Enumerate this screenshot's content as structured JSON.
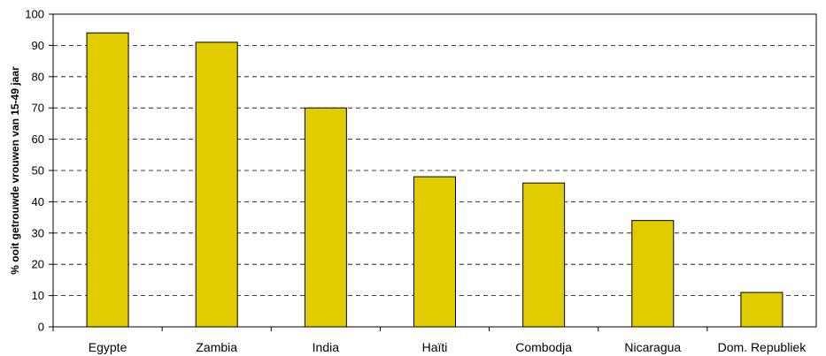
{
  "chart_data": {
    "type": "bar",
    "title": "",
    "xlabel": "",
    "ylabel": "% ooit getrouwde vrouwen van 15-49 jaar",
    "categories": [
      "Egypte",
      "Zambia",
      "India",
      "Haïti",
      "Combodja",
      "Nicaragua",
      "Dom. Republiek"
    ],
    "values": [
      94,
      91,
      70,
      48,
      46,
      34,
      11
    ],
    "ylim": [
      0,
      100
    ],
    "yticks": [
      0,
      10,
      20,
      30,
      40,
      50,
      60,
      70,
      80,
      90,
      100
    ],
    "grid": "horizontal dashed",
    "legend": "none",
    "colors": {
      "bar_fill": "#e0cc00",
      "bar_stroke": "#000000",
      "grid": "#000000",
      "axis": "#000000"
    }
  }
}
